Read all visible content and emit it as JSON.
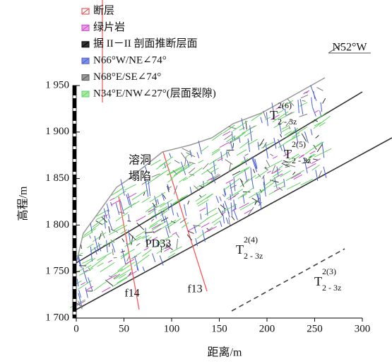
{
  "legend": {
    "items": [
      "断层",
      "绿片岩",
      "据 II－II 剖面推断层面",
      "N66°W/NE∠74°",
      "N68°E/SE∠74°",
      "N34°E/NW∠27°(层面裂隙)"
    ]
  },
  "axes": {
    "x": {
      "label": "距离/m",
      "lim": [
        0,
        300
      ],
      "ticks": [
        0,
        50,
        100,
        150,
        200,
        250,
        300
      ]
    },
    "y": {
      "label": "高程/m",
      "lim": [
        1700,
        1950
      ],
      "ticks": [
        {
          "value": 1700,
          "label": "1 700"
        },
        {
          "value": 1750,
          "label": "1 750"
        },
        {
          "value": 1800,
          "label": "1 800"
        },
        {
          "value": 1850,
          "label": "1 850"
        },
        {
          "value": 1900,
          "label": "1 900"
        },
        {
          "value": 1950,
          "label": "1 950"
        }
      ]
    }
  },
  "annotations": {
    "direction": "N52°W",
    "cave": "溶洞",
    "collapse": "塌陷",
    "adit": "PD33",
    "fault_f14": "f14",
    "fault_f13": "f13"
  },
  "strata": [
    {
      "symbol": "T",
      "superscript": "2(6)",
      "subscript": "2 - 3z"
    },
    {
      "symbol": "T",
      "superscript": "2(5)",
      "subscript": "2 - 3z"
    },
    {
      "symbol": "T",
      "superscript": "2(4)",
      "subscript": "2 - 3z"
    },
    {
      "symbol": "T",
      "superscript": "2(3)",
      "subscript": "2 - 3z"
    }
  ]
}
